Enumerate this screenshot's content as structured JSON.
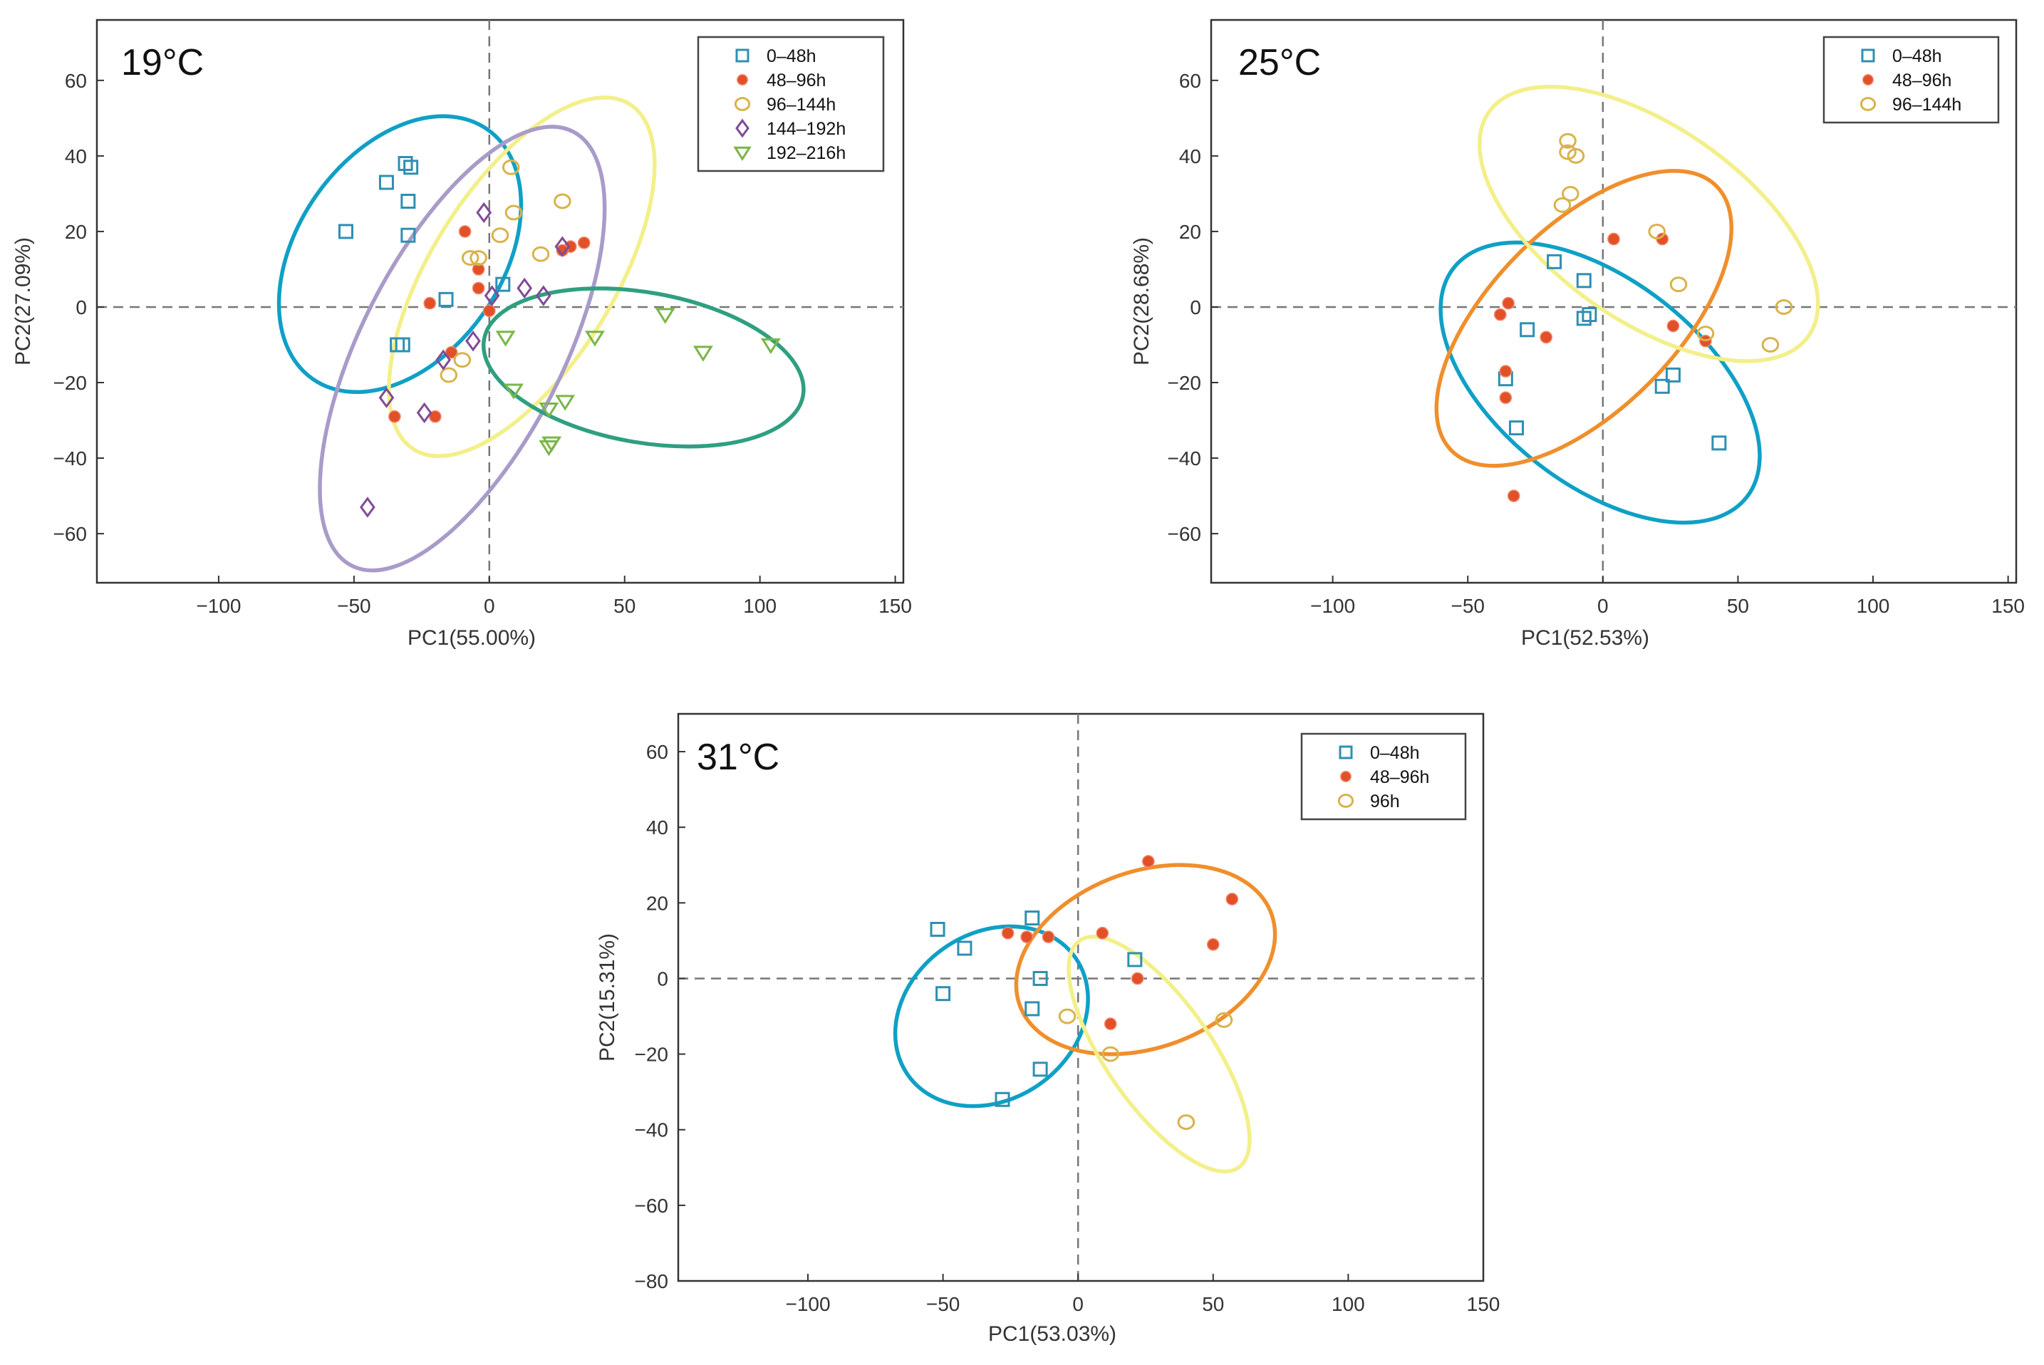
{
  "chart_data": [
    {
      "type": "scatter",
      "title": "19°C",
      "xlabel": "PC1(55.00%)",
      "ylabel": "PC2(27.09%)",
      "xlim": [
        -145,
        153
      ],
      "ylim": [
        -73,
        76
      ],
      "xticks": [
        -100,
        -50,
        0,
        50,
        100,
        150
      ],
      "yticks": [
        -60,
        -40,
        -20,
        0,
        20,
        40,
        60
      ],
      "tick_labels": {
        "x": [
          "−100",
          "−50",
          "0",
          "50",
          "100",
          "150"
        ],
        "y": [
          "−60",
          "−40",
          "−20",
          "0",
          "20",
          "40",
          "60"
        ]
      },
      "series": [
        {
          "name": "0–48h",
          "marker": "square",
          "color": "#2e8fb3",
          "points": [
            [
              -53,
              20
            ],
            [
              -38,
              33
            ],
            [
              -31,
              38
            ],
            [
              -29,
              37
            ],
            [
              -30,
              28
            ],
            [
              -30,
              19
            ],
            [
              -34,
              -10
            ],
            [
              -32,
              -10
            ],
            [
              -16,
              2
            ],
            [
              5,
              6
            ]
          ]
        },
        {
          "name": "48–96h",
          "marker": "dot",
          "color": "#e2502a",
          "points": [
            [
              -9,
              20
            ],
            [
              -4,
              10
            ],
            [
              -22,
              1
            ],
            [
              -35,
              -29
            ],
            [
              -20,
              -29
            ],
            [
              -14,
              -12
            ],
            [
              0,
              -1
            ],
            [
              -4,
              5
            ],
            [
              30,
              16
            ],
            [
              35,
              17
            ],
            [
              27,
              15
            ]
          ]
        },
        {
          "name": "96–144h",
          "marker": "circle",
          "color": "#d9b34a",
          "points": [
            [
              -7,
              13
            ],
            [
              -4,
              13
            ],
            [
              8,
              37
            ],
            [
              9,
              25
            ],
            [
              4,
              19
            ],
            [
              27,
              28
            ],
            [
              19,
              14
            ],
            [
              -10,
              -14
            ],
            [
              -15,
              -18
            ]
          ]
        },
        {
          "name": "144–192h",
          "marker": "diamond",
          "color": "#7f4b97",
          "points": [
            [
              -2,
              25
            ],
            [
              27,
              16
            ],
            [
              1,
              3
            ],
            [
              13,
              5
            ],
            [
              20,
              3
            ],
            [
              -6,
              -9
            ],
            [
              -17,
              -14
            ],
            [
              -38,
              -24
            ],
            [
              -24,
              -28
            ],
            [
              -45,
              -53
            ]
          ]
        },
        {
          "name": "192–216h",
          "marker": "triangle",
          "color": "#7ab648",
          "points": [
            [
              6,
              -8
            ],
            [
              9,
              -22
            ],
            [
              22,
              -27
            ],
            [
              28,
              -25
            ],
            [
              23,
              -36
            ],
            [
              22,
              -37
            ],
            [
              39,
              -8
            ],
            [
              65,
              -2
            ],
            [
              79,
              -12
            ],
            [
              104,
              -10
            ]
          ]
        }
      ],
      "ellipses": [
        {
          "group": "0–48h",
          "color": "#0fa0c6",
          "center": [
            -33,
            14
          ],
          "semi_axes": [
            44,
            33
          ],
          "rotation_deg": -55
        },
        {
          "group": "96–144h",
          "color": "#f3ef8a",
          "center": [
            12,
            8
          ],
          "semi_axes": [
            58,
            30
          ],
          "rotation_deg": -58
        },
        {
          "group": "144–192h",
          "color": "#a99bc9",
          "center": [
            -10,
            -11
          ],
          "semi_axes": [
            68,
            34
          ],
          "rotation_deg": -63
        },
        {
          "group": "192–216h",
          "color": "#2f9f80",
          "center": [
            57,
            -16
          ],
          "semi_axes": [
            59,
            20
          ],
          "rotation_deg": 10
        }
      ],
      "legend_position": "top-right",
      "reference_lines": {
        "x": 0,
        "y": 0
      }
    },
    {
      "type": "scatter",
      "title": "25°C",
      "xlabel": "PC1(52.53%)",
      "ylabel": "PC2(28.68%)",
      "xlim": [
        -145,
        153
      ],
      "ylim": [
        -73,
        76
      ],
      "xticks": [
        -100,
        -50,
        0,
        50,
        100,
        150
      ],
      "yticks": [
        -60,
        -40,
        -20,
        0,
        20,
        40,
        60
      ],
      "tick_labels": {
        "x": [
          "−100",
          "−50",
          "0",
          "50",
          "100",
          "150"
        ],
        "y": [
          "−60",
          "−40",
          "−20",
          "0",
          "20",
          "40",
          "60"
        ]
      },
      "series": [
        {
          "name": "0–48h",
          "marker": "square",
          "color": "#2e8fb3",
          "points": [
            [
              -18,
              12
            ],
            [
              -7,
              7
            ],
            [
              -28,
              -6
            ],
            [
              -7,
              -3
            ],
            [
              -5,
              -2
            ],
            [
              -36,
              -19
            ],
            [
              -32,
              -32
            ],
            [
              22,
              -21
            ],
            [
              26,
              -18
            ],
            [
              43,
              -36
            ]
          ]
        },
        {
          "name": "48–96h",
          "marker": "dot",
          "color": "#e2502a",
          "points": [
            [
              4,
              18
            ],
            [
              -38,
              -2
            ],
            [
              -35,
              1
            ],
            [
              -21,
              -8
            ],
            [
              -36,
              -17
            ],
            [
              -36,
              -24
            ],
            [
              -33,
              -50
            ],
            [
              22,
              18
            ],
            [
              26,
              -5
            ],
            [
              38,
              -9
            ]
          ]
        },
        {
          "name": "96–144h",
          "marker": "circle",
          "color": "#d9b34a",
          "points": [
            [
              -13,
              44
            ],
            [
              -13,
              41
            ],
            [
              -10,
              40
            ],
            [
              -12,
              30
            ],
            [
              -15,
              27
            ],
            [
              20,
              20
            ],
            [
              28,
              6
            ],
            [
              38,
              -7
            ],
            [
              62,
              -10
            ],
            [
              67,
              0
            ]
          ]
        }
      ],
      "ellipses": [
        {
          "group": "0–48h",
          "color": "#0fa0c6",
          "center": [
            -1,
            -20
          ],
          "semi_axes": [
            59,
            30
          ],
          "rotation_deg": 38
        },
        {
          "group": "48–96h",
          "color": "#ef8f2c",
          "center": [
            -7,
            -3
          ],
          "semi_axes": [
            57,
            28
          ],
          "rotation_deg": -45
        },
        {
          "group": "96–144h",
          "color": "#f3ef8a",
          "center": [
            17,
            22
          ],
          "semi_axes": [
            63,
            28
          ],
          "rotation_deg": 35
        }
      ],
      "legend_position": "top-right",
      "reference_lines": {
        "x": 0,
        "y": 0
      }
    },
    {
      "type": "scatter",
      "title": "31°C",
      "xlabel": "PC1(53.03%)",
      "ylabel": "PC2(15.31%)",
      "xlim": [
        -148,
        150
      ],
      "ylim": [
        -80,
        70
      ],
      "xticks": [
        -100,
        -50,
        0,
        50,
        100,
        150
      ],
      "yticks": [
        -80,
        -60,
        -40,
        -20,
        0,
        20,
        40,
        60
      ],
      "tick_labels": {
        "x": [
          "−100",
          "−50",
          "0",
          "50",
          "100",
          "150"
        ],
        "y": [
          "−80",
          "−60",
          "−40",
          "−20",
          "0",
          "20",
          "40",
          "60"
        ]
      },
      "series": [
        {
          "name": "0–48h",
          "marker": "square",
          "color": "#2e8fb3",
          "points": [
            [
              -52,
              13
            ],
            [
              -42,
              8
            ],
            [
              -50,
              -4
            ],
            [
              -17,
              16
            ],
            [
              -17,
              -8
            ],
            [
              -14,
              0
            ],
            [
              21,
              5
            ],
            [
              -14,
              -24
            ],
            [
              -28,
              -32
            ]
          ]
        },
        {
          "name": "48–96h",
          "marker": "dot",
          "color": "#e2502a",
          "points": [
            [
              -26,
              12
            ],
            [
              -19,
              11
            ],
            [
              -11,
              11
            ],
            [
              9,
              12
            ],
            [
              26,
              31
            ],
            [
              57,
              21
            ],
            [
              50,
              9
            ],
            [
              22,
              0
            ],
            [
              12,
              -12
            ]
          ]
        },
        {
          "name": "96h",
          "marker": "circle",
          "color": "#d9b34a",
          "points": [
            [
              -4,
              -10
            ],
            [
              12,
              -20
            ],
            [
              40,
              -38
            ],
            [
              54,
              -11
            ]
          ]
        }
      ],
      "ellipses": [
        {
          "group": "0–48h",
          "color": "#0fa0c6",
          "center": [
            -32,
            -10
          ],
          "semi_axes": [
            33,
            24
          ],
          "rotation_deg": -35
        },
        {
          "group": "48–96h",
          "color": "#ef8f2c",
          "center": [
            25,
            5
          ],
          "semi_axes": [
            47,
            24
          ],
          "rotation_deg": -20
        },
        {
          "group": "96h",
          "color": "#f3ef8a",
          "center": [
            30,
            -20
          ],
          "semi_axes": [
            40,
            17
          ],
          "rotation_deg": 55
        }
      ],
      "legend_position": "top-right",
      "reference_lines": {
        "x": 0,
        "y": 0
      }
    }
  ]
}
